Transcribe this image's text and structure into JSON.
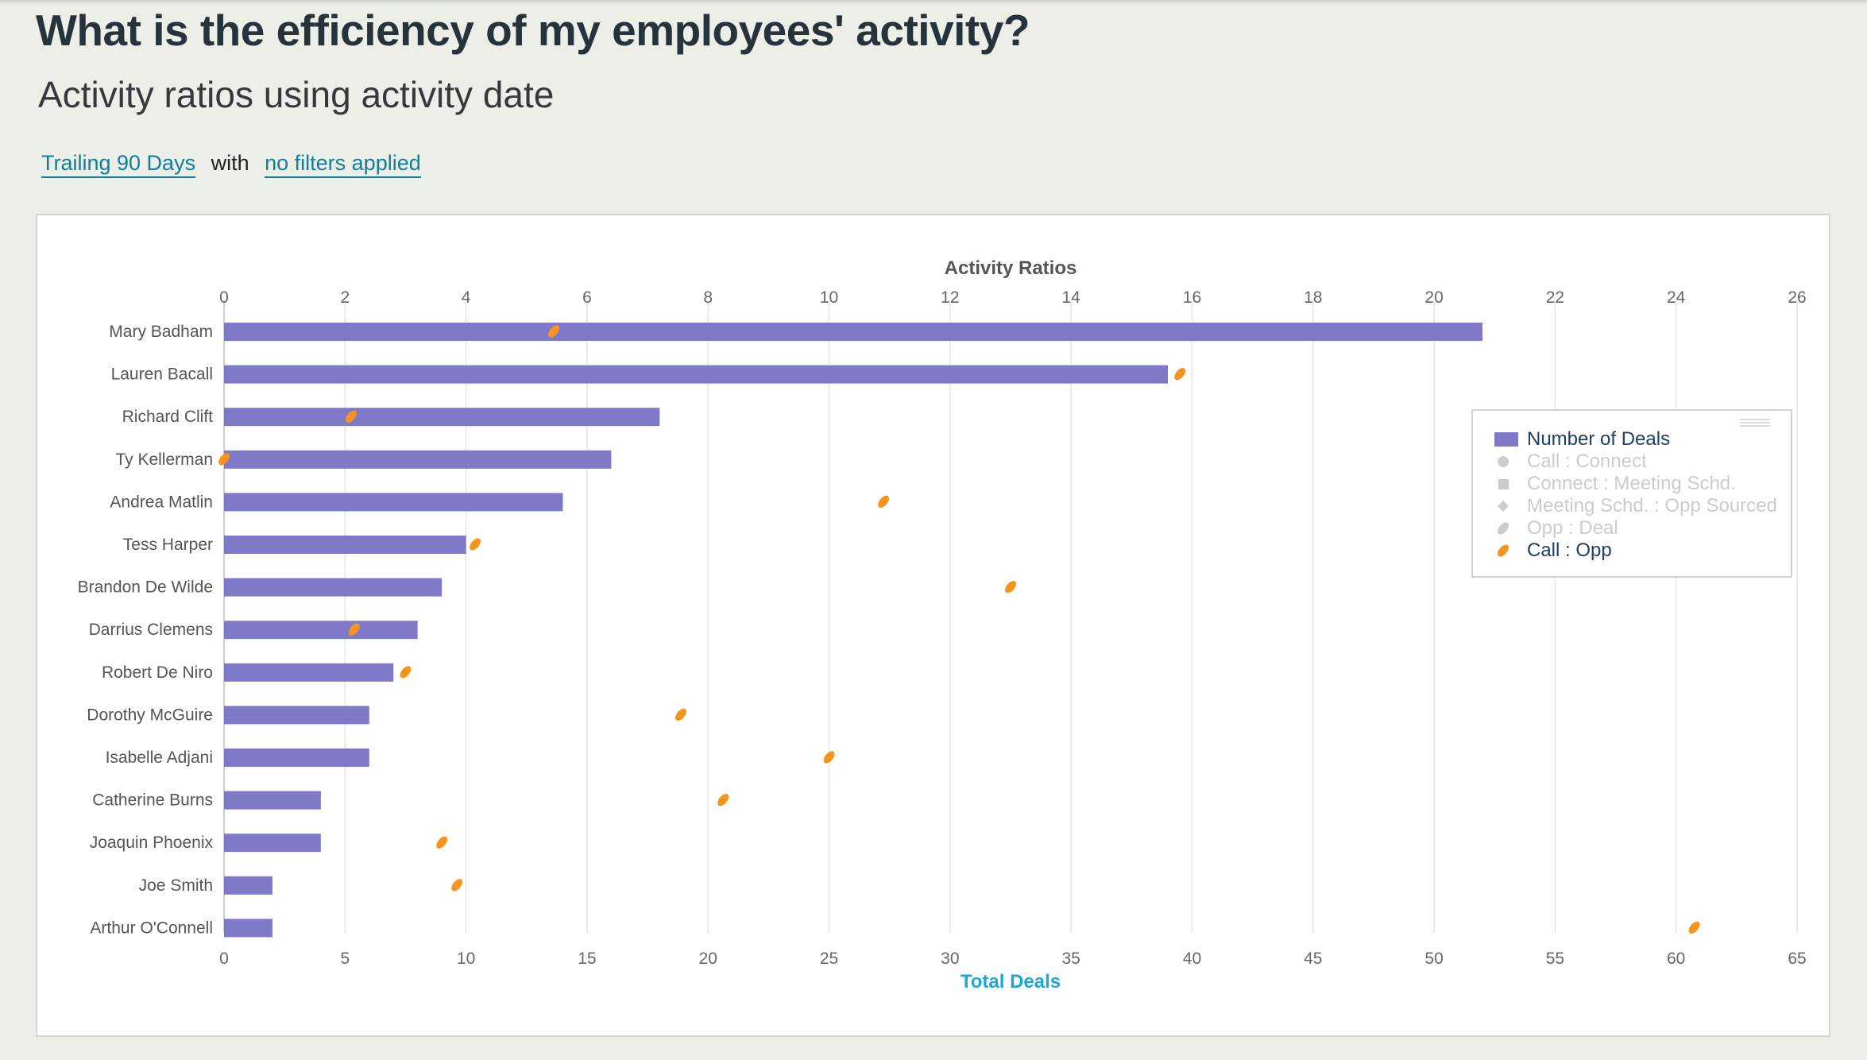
{
  "page": {
    "title": "What is the efficiency of my employees' activity?",
    "subtitle": "Activity ratios using activity date",
    "filter": {
      "period_link": "Trailing 90 Days",
      "connector": "with",
      "filters_link": "no filters applied"
    }
  },
  "legend": {
    "items": [
      {
        "label": "Number of Deals",
        "icon": "bar-swatch",
        "active": true,
        "color": "#8079c8"
      },
      {
        "label": "Call : Connect",
        "icon": "circle-marker",
        "active": false,
        "color": "#cccccc"
      },
      {
        "label": "Connect : Meeting Schd.",
        "icon": "square-marker",
        "active": false,
        "color": "#cccccc"
      },
      {
        "label": "Meeting Schd. : Opp Sourced",
        "icon": "diamond-marker",
        "active": false,
        "color": "#cccccc"
      },
      {
        "label": "Opp : Deal",
        "icon": "leaf-marker",
        "active": false,
        "color": "#cccccc"
      },
      {
        "label": "Call : Opp",
        "icon": "leaf-marker",
        "active": true,
        "color": "#f7941d"
      }
    ]
  },
  "chart_data": {
    "type": "bar",
    "orientation": "horizontal",
    "title": "Activity Ratios",
    "top_axis_title": "Activity Ratios",
    "bottom_axis_title": "Total Deals",
    "categories": [
      "Mary Badham",
      "Lauren Bacall",
      "Richard Clift",
      "Ty Kellerman",
      "Andrea Matlin",
      "Tess Harper",
      "Brandon De Wilde",
      "Darrius Clemens",
      "Robert De Niro",
      "Dorothy McGuire",
      "Isabelle Adjani",
      "Catherine Burns",
      "Joaquin Phoenix",
      "Joe Smith",
      "Arthur O'Connell"
    ],
    "bottom_axis": {
      "range": [
        0,
        65
      ],
      "ticks": [
        "0",
        "5",
        "10",
        "15",
        "20",
        "25",
        "30",
        "35",
        "40",
        "45",
        "50",
        "55",
        "60",
        "65"
      ]
    },
    "top_axis": {
      "range": [
        0,
        26
      ],
      "ticks": [
        "0",
        "2",
        "4",
        "6",
        "8",
        "10",
        "12",
        "14",
        "16",
        "18",
        "20",
        "22",
        "24",
        "26"
      ]
    },
    "grid": true,
    "legend_position": "right",
    "series": [
      {
        "name": "Number of Deals",
        "axis": "bottom",
        "kind": "bar",
        "color": "#8079c8",
        "values": [
          52,
          39,
          18,
          16,
          14,
          10,
          9,
          8,
          7,
          6,
          6,
          4,
          4,
          2,
          2
        ]
      },
      {
        "name": "Call : Opp",
        "axis": "top",
        "kind": "marker",
        "color": "#f7941d",
        "values": [
          5.45,
          15.8,
          2.1,
          0.0,
          10.9,
          4.15,
          13.0,
          2.15,
          3.0,
          7.55,
          10.0,
          8.25,
          3.6,
          3.85,
          24.3
        ]
      }
    ]
  }
}
